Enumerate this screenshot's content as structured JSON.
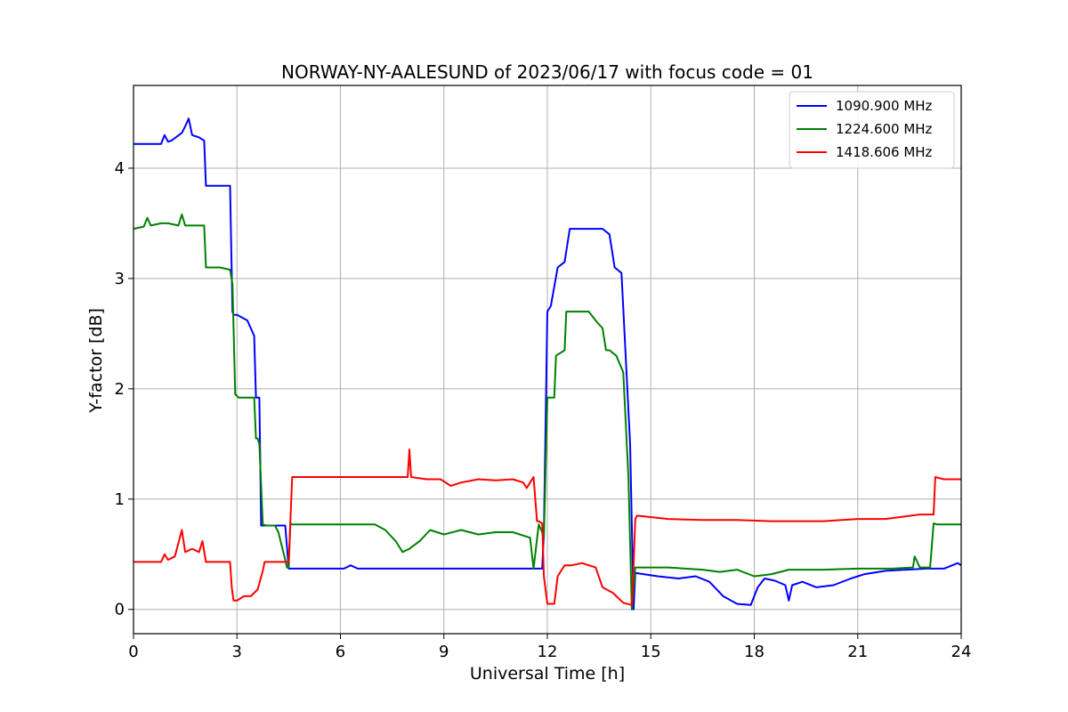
{
  "chart_data": {
    "type": "line",
    "title": "NORWAY-NY-AALESUND of 2023/06/17 with focus code = 01",
    "xlabel": "Universal Time [h]",
    "ylabel": "Y-factor [dB]",
    "xlim": [
      0,
      24
    ],
    "ylim": [
      -0.22,
      4.75
    ],
    "xticks": [
      0,
      3,
      6,
      9,
      12,
      15,
      18,
      21,
      24
    ],
    "yticks": [
      0,
      1,
      2,
      3,
      4
    ],
    "grid": true,
    "legend_position": "top-right",
    "series": [
      {
        "name": "1090.900 MHz",
        "color": "#0000ff",
        "x": [
          0,
          0.8,
          0.9,
          1.0,
          1.1,
          1.4,
          1.5,
          1.6,
          1.7,
          1.9,
          2.05,
          2.1,
          2.8,
          2.87,
          2.9,
          3.0,
          3.3,
          3.5,
          3.55,
          3.6,
          3.65,
          3.7,
          3.9,
          4.2,
          4.4,
          4.5,
          4.55,
          4.6,
          6.1,
          6.3,
          6.5,
          11.7,
          11.85,
          11.9,
          12.0,
          12.1,
          12.3,
          12.5,
          12.65,
          12.8,
          13.0,
          13.6,
          13.8,
          13.95,
          14.15,
          14.4,
          14.5,
          14.55,
          15.2,
          15.8,
          16.3,
          16.7,
          17.1,
          17.5,
          17.9,
          18.1,
          18.3,
          18.6,
          18.9,
          19.0,
          19.1,
          19.4,
          19.8,
          20.3,
          20.8,
          21.2,
          21.8,
          22.4,
          23.0,
          23.5,
          23.9,
          24.0
        ],
        "y": [
          4.22,
          4.22,
          4.3,
          4.24,
          4.25,
          4.32,
          4.38,
          4.45,
          4.3,
          4.28,
          4.25,
          3.84,
          3.84,
          2.7,
          2.67,
          2.67,
          2.62,
          2.48,
          1.92,
          1.92,
          1.92,
          0.76,
          0.76,
          0.76,
          0.76,
          0.37,
          0.37,
          0.37,
          0.37,
          0.4,
          0.37,
          0.37,
          0.37,
          0.7,
          2.7,
          2.75,
          3.1,
          3.15,
          3.45,
          3.45,
          3.45,
          3.45,
          3.4,
          3.1,
          3.05,
          1.5,
          0.0,
          0.33,
          0.3,
          0.28,
          0.3,
          0.25,
          0.12,
          0.05,
          0.04,
          0.2,
          0.28,
          0.26,
          0.22,
          0.08,
          0.22,
          0.25,
          0.2,
          0.22,
          0.28,
          0.32,
          0.35,
          0.36,
          0.37,
          0.37,
          0.42,
          0.4
        ]
      },
      {
        "name": "1224.600 MHz",
        "color": "#008000",
        "x": [
          0,
          0.3,
          0.4,
          0.5,
          0.8,
          1.0,
          1.3,
          1.4,
          1.5,
          1.7,
          2.05,
          2.1,
          2.5,
          2.8,
          2.87,
          2.95,
          3.05,
          3.5,
          3.55,
          3.6,
          3.65,
          3.75,
          3.85,
          4.1,
          4.2,
          4.4,
          4.45,
          4.5,
          4.55,
          4.6,
          7.0,
          7.3,
          7.6,
          7.8,
          8.0,
          8.3,
          8.6,
          9.0,
          9.5,
          10.0,
          10.5,
          11.0,
          11.5,
          11.6,
          11.75,
          11.85,
          11.9,
          12.0,
          12.2,
          12.25,
          12.5,
          12.55,
          12.75,
          13.2,
          13.45,
          13.6,
          13.7,
          13.8,
          14.0,
          14.2,
          14.35,
          14.45,
          14.55,
          15.5,
          16.5,
          17.0,
          17.5,
          18.0,
          18.5,
          19.0,
          20.0,
          21.0,
          22.0,
          22.6,
          22.65,
          22.8,
          23.1,
          23.2,
          23.3,
          24.0
        ],
        "y": [
          3.45,
          3.47,
          3.55,
          3.48,
          3.5,
          3.5,
          3.48,
          3.58,
          3.48,
          3.48,
          3.48,
          3.1,
          3.1,
          3.08,
          2.95,
          1.95,
          1.92,
          1.92,
          1.55,
          1.55,
          1.5,
          0.77,
          0.76,
          0.76,
          0.7,
          0.45,
          0.38,
          0.38,
          0.78,
          0.77,
          0.77,
          0.72,
          0.62,
          0.52,
          0.55,
          0.62,
          0.72,
          0.68,
          0.72,
          0.68,
          0.7,
          0.7,
          0.65,
          0.37,
          0.77,
          0.7,
          0.65,
          1.92,
          1.92,
          2.3,
          2.35,
          2.7,
          2.7,
          2.7,
          2.6,
          2.55,
          2.35,
          2.35,
          2.3,
          2.15,
          1.2,
          0.0,
          0.38,
          0.38,
          0.36,
          0.34,
          0.36,
          0.3,
          0.32,
          0.36,
          0.36,
          0.37,
          0.37,
          0.38,
          0.48,
          0.38,
          0.38,
          0.78,
          0.77,
          0.77
        ]
      },
      {
        "name": "1418.606 MHz",
        "color": "#ff0000",
        "x": [
          0,
          0.8,
          0.9,
          1.0,
          1.2,
          1.4,
          1.5,
          1.7,
          1.9,
          2.0,
          2.1,
          2.8,
          2.85,
          2.9,
          3.0,
          3.2,
          3.4,
          3.6,
          3.75,
          3.8,
          4.1,
          4.5,
          4.6,
          6.0,
          6.2,
          7.9,
          7.95,
          8.0,
          8.05,
          8.5,
          8.9,
          9.2,
          9.5,
          10.0,
          10.5,
          11.0,
          11.3,
          11.4,
          11.5,
          11.6,
          11.7,
          11.75,
          11.85,
          11.9,
          12.0,
          12.2,
          12.3,
          12.5,
          12.7,
          13.0,
          13.4,
          13.6,
          13.9,
          14.2,
          14.45,
          14.5,
          14.55,
          14.6,
          15.5,
          16.5,
          17.5,
          18.5,
          19.0,
          20.0,
          21.0,
          21.8,
          22.3,
          22.8,
          23.2,
          23.25,
          23.5,
          24.0
        ],
        "y": [
          0.43,
          0.43,
          0.5,
          0.45,
          0.48,
          0.72,
          0.52,
          0.55,
          0.52,
          0.62,
          0.43,
          0.43,
          0.2,
          0.08,
          0.08,
          0.12,
          0.12,
          0.18,
          0.35,
          0.43,
          0.43,
          0.43,
          1.2,
          1.2,
          1.2,
          1.2,
          1.2,
          1.45,
          1.2,
          1.18,
          1.18,
          1.12,
          1.15,
          1.18,
          1.17,
          1.18,
          1.15,
          1.1,
          1.15,
          1.2,
          0.8,
          0.8,
          0.78,
          0.3,
          0.05,
          0.05,
          0.3,
          0.4,
          0.4,
          0.42,
          0.38,
          0.2,
          0.15,
          0.06,
          0.04,
          0.4,
          0.82,
          0.85,
          0.82,
          0.81,
          0.81,
          0.8,
          0.8,
          0.8,
          0.82,
          0.82,
          0.84,
          0.86,
          0.86,
          1.2,
          1.18,
          1.18
        ]
      }
    ]
  }
}
